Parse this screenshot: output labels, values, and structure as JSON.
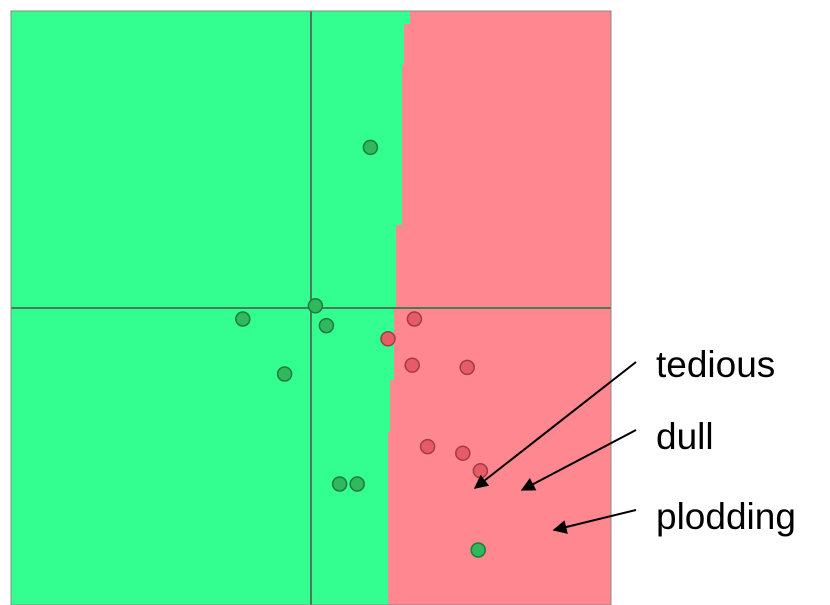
{
  "colors": {
    "positive_region": "#33ff90",
    "negative_region": "#ff8890",
    "positive_point": "#2fb85c",
    "negative_point": "#e65c66",
    "axis": "#4a7a5a",
    "arrow": "#000000"
  },
  "labels": [
    {
      "id": "tedious",
      "text": "tedious"
    },
    {
      "id": "dull",
      "text": "dull"
    },
    {
      "id": "plodding",
      "text": "plodding"
    }
  ],
  "points": [
    {
      "class": "positive",
      "x": 0.27,
      "y": 0.73
    },
    {
      "class": "positive",
      "x": 0.02,
      "y": 0.01
    },
    {
      "class": "positive",
      "x": -0.31,
      "y": -0.05
    },
    {
      "class": "positive",
      "x": 0.07,
      "y": -0.08
    },
    {
      "class": "positive",
      "x": -0.12,
      "y": -0.3
    },
    {
      "class": "positive",
      "x": 0.13,
      "y": -0.8
    },
    {
      "class": "positive",
      "x": 0.21,
      "y": -0.8
    },
    {
      "class": "positive",
      "x": 0.76,
      "y": -1.1
    },
    {
      "class": "negative",
      "x": 0.47,
      "y": -0.05
    },
    {
      "class": "negative",
      "x": 0.35,
      "y": -0.14
    },
    {
      "class": "negative",
      "x": 0.46,
      "y": -0.26
    },
    {
      "class": "negative",
      "x": 0.71,
      "y": -0.27
    },
    {
      "class": "negative",
      "x": 0.53,
      "y": -0.63,
      "label": "tedious"
    },
    {
      "class": "negative",
      "x": 0.69,
      "y": -0.66,
      "label": "dull"
    },
    {
      "class": "negative",
      "x": 0.77,
      "y": -0.74,
      "label": "plodding"
    }
  ]
}
